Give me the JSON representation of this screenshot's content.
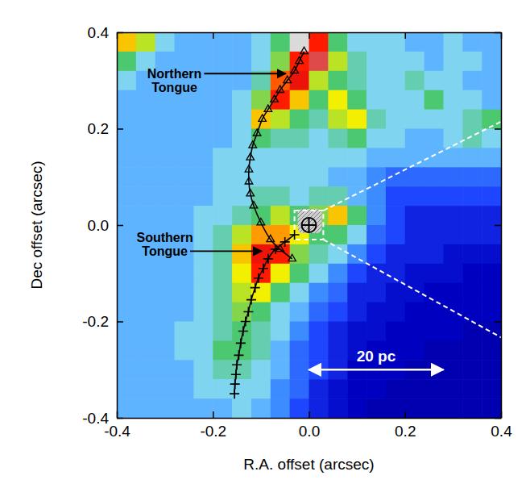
{
  "chart_data": {
    "type": "heatmap",
    "xlabel": "R.A. offset (arcsec)",
    "ylabel": "Dec offset (arcsec)",
    "xlim": [
      -0.4,
      0.4
    ],
    "ylim": [
      -0.4,
      0.4
    ],
    "xticks": [
      -0.4,
      -0.2,
      {
        "value": 0,
        "label": "0.0"
      },
      0.2,
      0.4
    ],
    "yticks": [
      -0.4,
      -0.2,
      {
        "value": 0,
        "label": "0.0"
      },
      0.2,
      0.4
    ],
    "color_range": [
      0,
      10
    ],
    "x": [
      -0.38,
      -0.34,
      -0.3,
      -0.26,
      -0.22,
      -0.18,
      -0.14,
      -0.1,
      -0.06,
      -0.02,
      0.02,
      0.06,
      0.1,
      0.14,
      0.18,
      0.22,
      0.26,
      0.3,
      0.34,
      0.38
    ],
    "y": [
      0.38,
      0.34,
      0.3,
      0.26,
      0.22,
      0.18,
      0.14,
      0.1,
      0.06,
      0.02,
      -0.02,
      -0.06,
      -0.1,
      -0.14,
      -0.18,
      -0.22,
      -0.26,
      -0.3,
      -0.34,
      -0.38
    ],
    "cells": [
      [
        7,
        6,
        4,
        3.5,
        3.5,
        3.5,
        3.5,
        4,
        5,
        10,
        8.5,
        5,
        4,
        4,
        4,
        3.5,
        3.5,
        4,
        3.5,
        3.5
      ],
      [
        5,
        4,
        3.5,
        3.5,
        3.5,
        3.5,
        3.5,
        4,
        5.5,
        8.5,
        9.5,
        6,
        4.5,
        4,
        4,
        4,
        3.5,
        4,
        4,
        3.5
      ],
      [
        4,
        3.5,
        3.5,
        3.5,
        3.5,
        3.5,
        3.5,
        4.5,
        8,
        9,
        6,
        5,
        4.5,
        4,
        4,
        4.5,
        4,
        4,
        3.5,
        3.5
      ],
      [
        3.5,
        3.5,
        3.5,
        3.5,
        3.5,
        3.5,
        4,
        5.5,
        8.5,
        7,
        5,
        6.5,
        5,
        4,
        4,
        4,
        5,
        4,
        4,
        3.5
      ],
      [
        3.5,
        3.5,
        3.5,
        3.5,
        3.5,
        3.5,
        4,
        7,
        6,
        5,
        4.5,
        6,
        6.5,
        4.5,
        4,
        4,
        4,
        4,
        4.5,
        5
      ],
      [
        3.5,
        3.5,
        3.5,
        3.5,
        3.5,
        3.5,
        4,
        5,
        4.5,
        4.5,
        4,
        4.5,
        5,
        4,
        4,
        3.5,
        3.5,
        4,
        4.5,
        4
      ],
      [
        3.5,
        3.5,
        3.5,
        3.5,
        3.5,
        4,
        4,
        4,
        4,
        4,
        4,
        4,
        4,
        3.5,
        3.5,
        3.5,
        3.5,
        3.5,
        3.5,
        3.5
      ],
      [
        3.5,
        3.5,
        3.5,
        3.5,
        3.5,
        4,
        4,
        4,
        4,
        4,
        4,
        3.5,
        3.5,
        3,
        2.5,
        2.5,
        2.5,
        2.5,
        2.5,
        2.5
      ],
      [
        3.5,
        3.5,
        3.5,
        3.5,
        3.5,
        4,
        4,
        4.5,
        4.5,
        4,
        4.5,
        4.5,
        3.5,
        3,
        2,
        2,
        2,
        2,
        2,
        2
      ],
      [
        3.5,
        3.5,
        3.5,
        3.5,
        4,
        4,
        4.5,
        5,
        6,
        5,
        5.5,
        7,
        5,
        3,
        2,
        1.5,
        1.5,
        1.5,
        1.5,
        1.5
      ],
      [
        3.5,
        3.5,
        3.5,
        3.5,
        4,
        4.5,
        6,
        7.5,
        7.5,
        6.5,
        5,
        5,
        4,
        2.5,
        2,
        1.5,
        1.5,
        1.5,
        1.5,
        1.5
      ],
      [
        3.5,
        3.5,
        3.5,
        3.5,
        4,
        4.5,
        7,
        9,
        8.5,
        5.5,
        4.5,
        4,
        3,
        2,
        1.5,
        1.5,
        1.5,
        1.2,
        1.2,
        1.2
      ],
      [
        3.5,
        3.5,
        3.5,
        3.5,
        4,
        4.5,
        6.5,
        8.5,
        6.5,
        5,
        4,
        3,
        2,
        1.5,
        1.5,
        1.2,
        1.2,
        1.2,
        1,
        1
      ],
      [
        3.5,
        3.5,
        3.5,
        3.5,
        4,
        4.5,
        6,
        6.5,
        5,
        4,
        3,
        2.5,
        1.5,
        1.5,
        1.2,
        1.2,
        1,
        1,
        1,
        1
      ],
      [
        3.5,
        3.5,
        3.5,
        3.5,
        4,
        4.5,
        5.5,
        5,
        4,
        3.5,
        2.5,
        2,
        1.5,
        1.2,
        1.2,
        1,
        1,
        1,
        1,
        1
      ],
      [
        3.5,
        3.5,
        3.5,
        4,
        4,
        4.5,
        5,
        4.5,
        4,
        3,
        2,
        1.5,
        1.2,
        1.2,
        1,
        1,
        1,
        1,
        0.8,
        0.8
      ],
      [
        3.5,
        3.5,
        3.5,
        4,
        4,
        5,
        5,
        4.5,
        3.5,
        2.5,
        2,
        1.5,
        1.2,
        1,
        1,
        1,
        0.8,
        0.8,
        0.8,
        0.8
      ],
      [
        3.5,
        3.5,
        3.5,
        3.5,
        4,
        4.5,
        4.5,
        4,
        3.5,
        2.5,
        2,
        1.5,
        1,
        1,
        1,
        0.8,
        0.8,
        0.8,
        0.8,
        0.8
      ],
      [
        3.5,
        3.5,
        3.5,
        3.5,
        4,
        4,
        4,
        4,
        3,
        2.5,
        1.5,
        1.2,
        1,
        1,
        0.8,
        0.8,
        0.8,
        0.8,
        0.8,
        0.8
      ],
      [
        3.5,
        3.5,
        3.5,
        3.5,
        3.5,
        3.5,
        4,
        3.5,
        3,
        2,
        1.5,
        1.2,
        1,
        0.8,
        0.8,
        0.8,
        0.8,
        0.8,
        0.8,
        0.8
      ]
    ],
    "tracks": [
      {
        "marker": "triangle",
        "color": "#000000",
        "x": [
          -0.01,
          -0.02,
          -0.03,
          -0.045,
          -0.06,
          -0.072,
          -0.085,
          -0.097,
          -0.108,
          -0.117,
          -0.122,
          -0.125,
          -0.125,
          -0.122,
          -0.115,
          -0.1,
          -0.08,
          -0.06,
          -0.035
        ],
        "y": [
          0.36,
          0.34,
          0.32,
          0.3,
          0.28,
          0.26,
          0.24,
          0.22,
          0.19,
          0.165,
          0.14,
          0.115,
          0.09,
          0.065,
          0.04,
          0.005,
          -0.03,
          -0.05,
          -0.07
        ]
      },
      {
        "marker": "plus",
        "color": "#000000",
        "x": [
          -0.03,
          -0.05,
          -0.07,
          -0.085,
          -0.095,
          -0.105,
          -0.112,
          -0.12,
          -0.126,
          -0.132,
          -0.137,
          -0.142,
          -0.146,
          -0.15,
          -0.152,
          -0.154,
          -0.155
        ],
        "y": [
          -0.02,
          -0.035,
          -0.05,
          -0.07,
          -0.09,
          -0.11,
          -0.13,
          -0.155,
          -0.18,
          -0.2,
          -0.22,
          -0.245,
          -0.27,
          -0.29,
          -0.31,
          -0.33,
          -0.35
        ]
      }
    ],
    "annotations": [
      "Northern Tongue",
      "Southern Tongue"
    ],
    "nucleus": {
      "x": 0,
      "y": 0
    },
    "zoom_box": {
      "x": [
        -0.03,
        0.03
      ],
      "y": [
        -0.03,
        0.03
      ]
    },
    "scale_bar": {
      "label": "20 pc",
      "x": [
        0.0,
        0.28
      ],
      "y": -0.3
    }
  }
}
